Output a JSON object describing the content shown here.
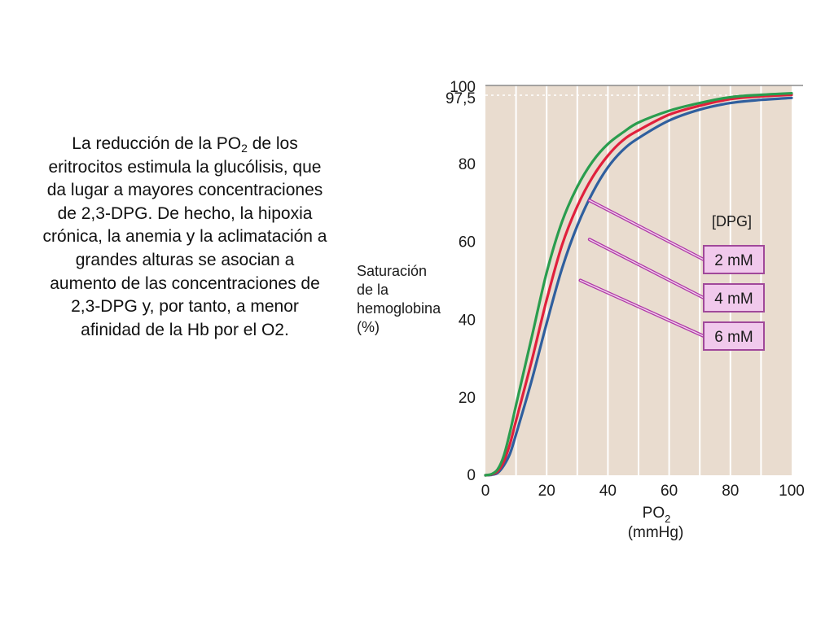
{
  "slide_text": {
    "part1": "La reducción de la PO",
    "sub": "2",
    "part2": " de los eritrocitos estimula la glucólisis, que da lugar a mayores concentraciones de 2,3-DPG. De hecho, la hipoxia crónica, la anemia y la aclimatación a grandes alturas se asocian a aumento de las concentraciones de 2,3-DPG y, por tanto, a menor afinidad de la Hb por el O2."
  },
  "colors": {
    "plot_background": "#e9dccf",
    "grid": "#ffffff",
    "series_green": "#2a9d4e",
    "series_red": "#e0203c",
    "series_blue": "#2f5f9e",
    "legend_box_fill": "#f1c9ec",
    "legend_box_stroke": "#a0489a",
    "pointer": "#b03aa8"
  },
  "chart_data": {
    "type": "line",
    "ylabel_lines": [
      "Saturación",
      "de la",
      "hemoglobina",
      "(%)"
    ],
    "xlabel_main": "PO",
    "xlabel_sub": "2",
    "xlabel_unit": "(mmHg)",
    "x_ticks": [
      "0",
      "20",
      "40",
      "60",
      "80",
      "100"
    ],
    "y_ticks": [
      "0",
      "20",
      "40",
      "60",
      "80",
      "97,5",
      "100"
    ],
    "xlim": [
      0,
      100
    ],
    "ylim": [
      0,
      100
    ],
    "reference_line_y": 97.5,
    "legend_title": "[DPG]",
    "x": [
      0,
      2,
      4,
      6,
      8,
      10,
      15,
      20,
      25,
      30,
      35,
      40,
      45,
      50,
      60,
      70,
      80,
      90,
      100
    ],
    "series": [
      {
        "name": "2 mM",
        "color": "#2a9d4e",
        "values": [
          0,
          0.3,
          1.5,
          5,
          11,
          18,
          35,
          52,
          65,
          74,
          80.5,
          85,
          88,
          90.5,
          93.5,
          95.5,
          97,
          97.6,
          98
        ]
      },
      {
        "name": "4 mM",
        "color": "#e0203c",
        "values": [
          0,
          0.2,
          1,
          3.5,
          8,
          14,
          29,
          45,
          59,
          69,
          76.5,
          82,
          86,
          88.5,
          92.5,
          94.8,
          96.5,
          97.2,
          97.6
        ]
      },
      {
        "name": "6 mM",
        "color": "#2f5f9e",
        "values": [
          0,
          0.1,
          0.6,
          2.5,
          5.5,
          10.5,
          24,
          39,
          53,
          64,
          72.5,
          79,
          83.5,
          86.5,
          91,
          93.8,
          95.5,
          96.3,
          96.8
        ]
      }
    ]
  }
}
